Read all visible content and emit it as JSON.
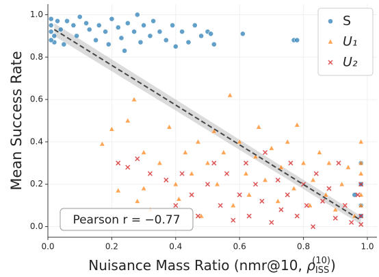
{
  "chart_data": {
    "type": "scatter",
    "ylabel": "Mean Success Rate",
    "xlabel": {
      "text": "Nuisance Mass Ratio (nmr@10, ",
      "symbol": "ρ",
      "sub": "ISS",
      "sup": "(10)",
      "close": ")"
    },
    "annotation": "Pearson r = −0.77",
    "xlim": [
      0,
      1.03
    ],
    "ylim": [
      -0.05,
      1.05
    ],
    "xticks": [
      {
        "value": 0,
        "label": "0.0"
      },
      0.2,
      0.4,
      0.6,
      0.8,
      {
        "value": 1,
        "label": "1.0"
      }
    ],
    "yticks": [
      {
        "value": 0,
        "label": "0.0"
      },
      0.2,
      0.4,
      0.6,
      0.8,
      {
        "value": 1,
        "label": "1.0"
      }
    ],
    "grid": true,
    "legend": "upper right",
    "fit": {
      "color": "#444444",
      "x": [
        0.02,
        0.98
      ],
      "y": [
        0.93,
        0.03
      ],
      "ci_low": [
        0.9,
        0.01
      ],
      "ci_high": [
        0.96,
        0.05
      ]
    },
    "series": [
      {
        "name": "S",
        "marker": "circle",
        "color": "#1f77b4",
        "x": [
          0.01,
          0.01,
          0.01,
          0.02,
          0.02,
          0.01,
          0.03,
          0.04,
          0.05,
          0.06,
          0.08,
          0.09,
          0.1,
          0.12,
          0.13,
          0.15,
          0.16,
          0.18,
          0.19,
          0.2,
          0.22,
          0.23,
          0.24,
          0.25,
          0.27,
          0.28,
          0.29,
          0.3,
          0.32,
          0.33,
          0.35,
          0.37,
          0.39,
          0.4,
          0.42,
          0.44,
          0.46,
          0.48,
          0.5,
          0.51,
          0.52,
          0.61,
          0.77,
          0.78,
          0.98,
          0.98,
          0.98,
          0.98,
          0.96
        ],
        "values": [
          0.98,
          0.95,
          0.92,
          0.9,
          0.87,
          0.88,
          0.97,
          0.93,
          0.86,
          0.97,
          0.95,
          0.9,
          0.99,
          0.96,
          0.93,
          0.88,
          0.95,
          0.92,
          0.86,
          0.98,
          0.94,
          0.89,
          0.83,
          0.96,
          0.92,
          1.0,
          0.87,
          0.95,
          0.9,
          0.97,
          0.92,
          0.88,
          0.95,
          0.85,
          0.92,
          0.87,
          0.95,
          0.9,
          0.92,
          0.91,
          0.86,
          0.91,
          0.88,
          0.88,
          0.3,
          0.2,
          0.1,
          0.05,
          0.15
        ]
      },
      {
        "name": "U₁",
        "marker": "triangle",
        "color": "#ff7f0e",
        "x": [
          0.17,
          0.2,
          0.22,
          0.25,
          0.27,
          0.28,
          0.3,
          0.3,
          0.32,
          0.35,
          0.38,
          0.4,
          0.41,
          0.43,
          0.45,
          0.47,
          0.48,
          0.5,
          0.52,
          0.53,
          0.55,
          0.57,
          0.58,
          0.6,
          0.62,
          0.63,
          0.65,
          0.66,
          0.68,
          0.7,
          0.72,
          0.73,
          0.75,
          0.77,
          0.78,
          0.8,
          0.82,
          0.83,
          0.85,
          0.87,
          0.88,
          0.9,
          0.92,
          0.94,
          0.96,
          0.98,
          0.98,
          0.98,
          0.98,
          0.98
        ],
        "values": [
          0.39,
          0.46,
          0.17,
          0.5,
          0.6,
          0.12,
          0.35,
          0.18,
          0.08,
          0.3,
          0.47,
          0.2,
          0.13,
          0.35,
          0.25,
          0.4,
          0.05,
          0.3,
          0.45,
          0.2,
          0.35,
          0.62,
          0.1,
          0.4,
          0.25,
          0.15,
          0.33,
          0.47,
          0.22,
          0.37,
          0.12,
          0.28,
          0.4,
          0.18,
          0.48,
          0.3,
          0.1,
          0.22,
          0.35,
          0.15,
          0.3,
          0.08,
          0.2,
          0.28,
          0.05,
          0.3,
          0.25,
          0.15,
          0.1,
          0.4
        ]
      },
      {
        "name": "U₂",
        "marker": "x",
        "color": "#d62728",
        "x": [
          0.22,
          0.25,
          0.28,
          0.32,
          0.37,
          0.4,
          0.42,
          0.45,
          0.47,
          0.5,
          0.52,
          0.54,
          0.56,
          0.58,
          0.6,
          0.62,
          0.63,
          0.65,
          0.67,
          0.68,
          0.7,
          0.72,
          0.73,
          0.75,
          0.76,
          0.78,
          0.8,
          0.81,
          0.83,
          0.84,
          0.86,
          0.88,
          0.9,
          0.91,
          0.93,
          0.95,
          0.97,
          0.98,
          0.98,
          0.98
        ],
        "values": [
          0.3,
          0.28,
          0.32,
          0.25,
          0.22,
          0.1,
          0.25,
          0.15,
          0.05,
          0.2,
          0.3,
          0.1,
          0.25,
          0.03,
          0.15,
          0.3,
          0.05,
          0.2,
          0.12,
          0.35,
          0.02,
          0.22,
          0.08,
          0.15,
          0.3,
          0.05,
          0.2,
          0.1,
          0.0,
          0.25,
          0.12,
          0.18,
          0.04,
          0.3,
          0.1,
          0.02,
          0.15,
          0.05,
          0.2,
          0.01
        ]
      }
    ]
  }
}
